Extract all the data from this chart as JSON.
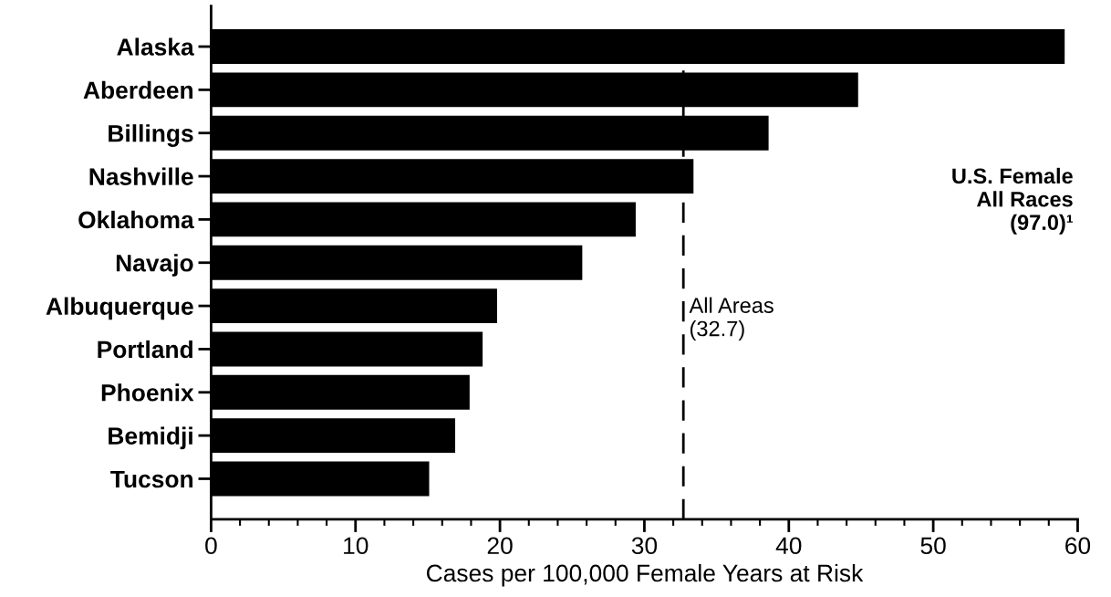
{
  "chart_data": {
    "type": "bar",
    "orientation": "horizontal",
    "categories": [
      "Alaska",
      "Aberdeen",
      "Billings",
      "Nashville",
      "Oklahoma",
      "Navajo",
      "Albuquerque",
      "Portland",
      "Phoenix",
      "Bemidji",
      "Tucson"
    ],
    "values": [
      59.1,
      44.8,
      38.6,
      33.4,
      29.4,
      25.7,
      19.8,
      18.8,
      17.9,
      16.9,
      15.1
    ],
    "color": "#000000",
    "xlabel": "Cases per 100,000 Female Years at Risk",
    "xlim": [
      0,
      60
    ],
    "xticks": [
      0,
      10,
      20,
      30,
      40,
      50,
      60
    ],
    "ref_lines": [
      {
        "axis": "x",
        "value": 32.7,
        "label": "All Areas\n(32.7)",
        "color": "#000000",
        "line_style": "dashed"
      }
    ],
    "annotations": [
      "U.S. Female\nAll Races\n(97.0)¹"
    ],
    "grid": false,
    "legend": false
  }
}
